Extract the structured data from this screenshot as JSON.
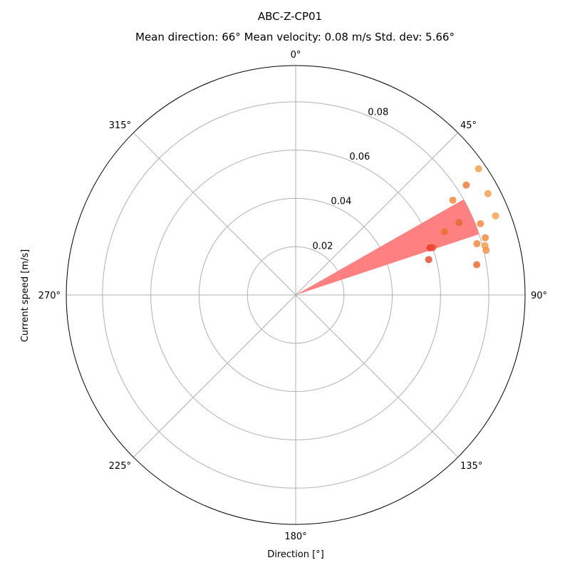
{
  "chart_data": {
    "type": "scatter",
    "projection": "polar",
    "theta_zero": "N",
    "theta_direction": "clockwise",
    "title": "ABC-Z-CP01",
    "subtitle": "Mean direction: 66° Mean velocity: 0.08 m/s Std. dev: 5.66°",
    "xlabel": "Direction [°]",
    "ylabel": "Current speed [m/s]",
    "rlim": [
      0,
      0.095
    ],
    "r_ticks": [
      0.02,
      0.04,
      0.06,
      0.08
    ],
    "r_tick_labels": [
      "0.02",
      "0.04",
      "0.06",
      "0.08"
    ],
    "theta_ticks": [
      0,
      45,
      90,
      135,
      180,
      225,
      270,
      315
    ],
    "theta_tick_labels": [
      "0°",
      "45°",
      "90°",
      "135°",
      "180°",
      "225°",
      "270°",
      "315°"
    ],
    "grid": true,
    "mean_wedge": {
      "direction": 66,
      "speed": 0.08,
      "std_dev": 5.66,
      "color": "#ff8080"
    },
    "points": [
      {
        "direction": 55.4,
        "speed": 0.092,
        "color": "#f5a050"
      },
      {
        "direction": 57.2,
        "speed": 0.084,
        "color": "#ee7a38"
      },
      {
        "direction": 58.9,
        "speed": 0.076,
        "color": "#f58a40"
      },
      {
        "direction": 62.2,
        "speed": 0.09,
        "color": "#f5a050"
      },
      {
        "direction": 66.1,
        "speed": 0.074,
        "color": "#e86a34"
      },
      {
        "direction": 67.0,
        "speed": 0.067,
        "color": "#ec7030"
      },
      {
        "direction": 68.4,
        "speed": 0.089,
        "color": "#f7a552"
      },
      {
        "direction": 68.9,
        "speed": 0.082,
        "color": "#f58a40"
      },
      {
        "direction": 70.7,
        "speed": 0.059,
        "color": "#ee3020"
      },
      {
        "direction": 70.9,
        "speed": 0.06,
        "color": "#e85030"
      },
      {
        "direction": 73.2,
        "speed": 0.082,
        "color": "#f58a40"
      },
      {
        "direction": 75.4,
        "speed": 0.081,
        "color": "#f5a050"
      },
      {
        "direction": 74.2,
        "speed": 0.078,
        "color": "#f58a40"
      },
      {
        "direction": 75.1,
        "speed": 0.057,
        "color": "#e85030"
      },
      {
        "direction": 76.8,
        "speed": 0.081,
        "color": "#f59248"
      },
      {
        "direction": 80.5,
        "speed": 0.076,
        "color": "#ec6a30"
      }
    ]
  }
}
